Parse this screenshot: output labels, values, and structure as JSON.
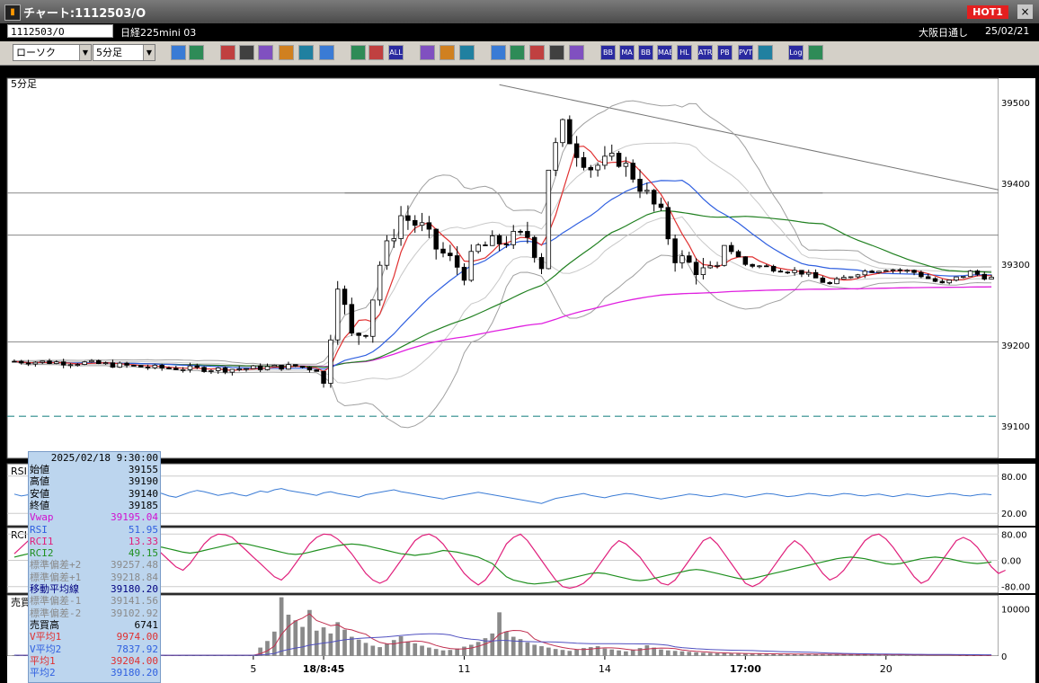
{
  "window": {
    "title": "チャート:1112503/O",
    "hot_label": "HOT1",
    "close_label": "×"
  },
  "symbol_bar": {
    "code": "1112503/O",
    "name": "日経225mini 03",
    "market": "大阪日通し",
    "date": "25/02/21"
  },
  "toolbar": {
    "chart_style": "ローソク",
    "interval": "5分足",
    "icons": [
      "zoom-icon",
      "layout-icon",
      "pencil-icon",
      "draw-icon",
      "cursor-icon",
      "undo-icon",
      "list-icon",
      "trash-icon",
      "candle-toggle-icon",
      "compress-icon",
      "all-icon",
      "settings-icon",
      "edit-icon",
      "color-icon",
      "import-icon",
      "search-chart-icon",
      "export-icon",
      "cross-icon",
      "info-icon",
      "bb-icon",
      "ma-icon",
      "bb2-icon",
      "mae-icon",
      "hl-icon",
      "atr-icon",
      "pb-icon",
      "pvt-icon",
      "box-icon",
      "log-icon",
      "exit-icon"
    ],
    "text_icons": {
      "all": "ALL",
      "bb": "BB",
      "ma": "MA",
      "mae": "MAE",
      "hl": "HL",
      "atr": "ATR",
      "pb": "PB",
      "pvt": "PVT",
      "log": "Log"
    }
  },
  "colors": {
    "up": "#ffffff",
    "down": "#000000",
    "ma_short": "#e03030",
    "ma_mid": "#3060e0",
    "ma_long": "#208020",
    "vwap": "#e020e0",
    "band": "#a0a0a0",
    "rsi": "#3a7bd5",
    "rci1": "#e0207c",
    "rci2": "#209020"
  },
  "infobox": {
    "datetime": "2025/02/18 9:30:00",
    "rows": [
      {
        "k": "始値",
        "v": "39155",
        "c": "#000"
      },
      {
        "k": "高値",
        "v": "39190",
        "c": "#000"
      },
      {
        "k": "安値",
        "v": "39140",
        "c": "#000"
      },
      {
        "k": "終値",
        "v": "39185",
        "c": "#000"
      },
      {
        "k": "Vwap",
        "v": "39195.04",
        "c": "#d010d0"
      },
      {
        "k": "RSI",
        "v": "51.95",
        "c": "#3060e0"
      },
      {
        "k": "RCI1",
        "v": "13.33",
        "c": "#e0207c"
      },
      {
        "k": "RCI2",
        "v": "49.15",
        "c": "#209020"
      },
      {
        "k": "標準偏差+2",
        "v": "39257.48",
        "c": "#8a8a8a"
      },
      {
        "k": "標準偏差+1",
        "v": "39218.84",
        "c": "#8a8a8a"
      },
      {
        "k": "移動平均線",
        "v": "39180.20",
        "c": "#000080"
      },
      {
        "k": "標準偏差-1",
        "v": "39141.56",
        "c": "#8a8a8a"
      },
      {
        "k": "標準偏差-2",
        "v": "39102.92",
        "c": "#8a8a8a"
      },
      {
        "k": "売買高",
        "v": "6741",
        "c": "#000"
      },
      {
        "k": "V平均1",
        "v": "9974.00",
        "c": "#e03030"
      },
      {
        "k": "V平均2",
        "v": "7837.92",
        "c": "#3060e0"
      },
      {
        "k": "平均1",
        "v": "39204.00",
        "c": "#e03030"
      },
      {
        "k": "平均2",
        "v": "39180.20",
        "c": "#3060e0"
      }
    ]
  },
  "chart_data": [
    {
      "type": "candlestick",
      "panel": "price",
      "interval_label": "5分足",
      "y_ticks": [
        39500,
        39400,
        39300,
        39200,
        39100
      ],
      "ylim": [
        39060,
        39530
      ],
      "x_ticks": [
        "5",
        "18/8:45",
        "11",
        "14",
        "17:00",
        "20"
      ],
      "x_tick_bar_index": [
        34,
        44,
        64,
        84,
        104,
        124
      ],
      "bar_count": 140,
      "horizontal_lines": [
        39388,
        39336,
        39204
      ],
      "dashed_line": 39112,
      "trendline": {
        "from": [
          69,
          39522
        ],
        "to": [
          140,
          39392
        ]
      },
      "trend": [
        [
          0,
          39180
        ],
        [
          10,
          39178
        ],
        [
          20,
          39172
        ],
        [
          30,
          39170
        ],
        [
          40,
          39174
        ],
        [
          43,
          39170
        ],
        [
          44,
          39150
        ],
        [
          46,
          39280
        ],
        [
          48,
          39210
        ],
        [
          50,
          39220
        ],
        [
          52,
          39300
        ],
        [
          55,
          39360
        ],
        [
          58,
          39345
        ],
        [
          60,
          39320
        ],
        [
          64,
          39290
        ],
        [
          66,
          39320
        ],
        [
          70,
          39330
        ],
        [
          73,
          39335
        ],
        [
          75,
          39300
        ],
        [
          76,
          39420
        ],
        [
          78,
          39470
        ],
        [
          80,
          39440
        ],
        [
          82,
          39420
        ],
        [
          86,
          39430
        ],
        [
          88,
          39410
        ],
        [
          92,
          39360
        ],
        [
          94,
          39310
        ],
        [
          98,
          39290
        ],
        [
          100,
          39290
        ],
        [
          101,
          39325
        ],
        [
          104,
          39300
        ],
        [
          108,
          39295
        ],
        [
          112,
          39290
        ],
        [
          116,
          39275
        ],
        [
          120,
          39290
        ],
        [
          124,
          39295
        ],
        [
          128,
          39290
        ],
        [
          132,
          39275
        ],
        [
          136,
          39290
        ],
        [
          140,
          39280
        ]
      ]
    },
    {
      "type": "line",
      "panel": "RSI",
      "name": "RSI",
      "y_ticks": [
        80,
        20
      ],
      "ylim": [
        0,
        100
      ],
      "values": [
        51,
        48,
        50,
        46,
        52,
        55,
        49,
        47,
        50,
        53,
        51,
        48,
        46,
        50,
        52,
        49,
        47,
        45,
        50,
        53,
        55,
        52,
        48,
        46,
        50,
        54,
        57,
        55,
        52,
        49,
        51,
        53,
        50,
        48,
        52,
        56,
        54,
        58,
        60,
        57,
        55,
        53,
        51,
        49,
        53,
        55,
        52,
        50,
        48,
        46,
        50,
        52,
        54,
        56,
        58,
        55,
        53,
        51,
        49,
        47,
        45,
        43,
        46,
        48,
        50,
        52,
        54,
        52,
        50,
        48,
        46,
        44,
        42,
        40,
        38,
        36,
        40,
        44,
        46,
        48,
        50,
        52,
        49,
        47,
        45,
        48,
        50,
        52,
        51,
        49,
        47,
        45,
        43,
        45,
        47,
        49,
        51,
        50,
        48,
        47,
        49,
        51,
        50,
        48,
        46,
        48,
        50,
        52,
        51,
        49,
        47,
        48,
        50,
        52,
        51,
        49,
        48,
        50,
        52,
        51,
        49,
        48,
        50,
        51,
        49,
        47,
        49,
        51,
        50,
        48,
        47,
        49,
        50,
        52,
        51,
        49,
        48,
        50,
        51,
        50
      ]
    },
    {
      "type": "line",
      "panel": "RCI",
      "y_ticks": [
        80,
        0,
        -80
      ],
      "ylim": [
        -100,
        100
      ],
      "series": [
        {
          "name": "RCI1",
          "values": [
            20,
            40,
            60,
            75,
            80,
            70,
            50,
            30,
            10,
            -10,
            -30,
            -40,
            -20,
            10,
            40,
            60,
            70,
            75,
            70,
            60,
            40,
            20,
            0,
            -20,
            -30,
            -10,
            20,
            50,
            70,
            80,
            78,
            70,
            50,
            30,
            10,
            -10,
            -30,
            -50,
            -60,
            -40,
            -10,
            20,
            50,
            70,
            80,
            78,
            65,
            45,
            20,
            -10,
            -40,
            -60,
            -70,
            -60,
            -30,
            0,
            30,
            60,
            75,
            80,
            70,
            50,
            20,
            -10,
            -40,
            -60,
            -75,
            -60,
            -30,
            10,
            50,
            70,
            80,
            60,
            30,
            0,
            -30,
            -60,
            -80,
            -85,
            -80,
            -70,
            -50,
            -20,
            10,
            40,
            60,
            50,
            30,
            10,
            -20,
            -50,
            -70,
            -75,
            -60,
            -30,
            0,
            30,
            60,
            70,
            50,
            20,
            -10,
            -40,
            -70,
            -80,
            -70,
            -50,
            -20,
            10,
            40,
            60,
            45,
            20,
            -10,
            -40,
            -60,
            -50,
            -30,
            0,
            30,
            60,
            75,
            80,
            65,
            40,
            10,
            -20,
            -50,
            -70,
            -60,
            -30,
            0,
            30,
            60,
            70,
            60,
            40,
            10,
            -20,
            -40,
            -30
          ]
        },
        {
          "name": "RCI2",
          "values": [
            10,
            15,
            20,
            25,
            28,
            30,
            30,
            28,
            25,
            20,
            15,
            10,
            8,
            10,
            15,
            20,
            25,
            30,
            35,
            40,
            42,
            40,
            35,
            30,
            25,
            22,
            25,
            30,
            35,
            40,
            45,
            50,
            52,
            50,
            45,
            40,
            35,
            30,
            25,
            20,
            18,
            20,
            25,
            30,
            35,
            40,
            45,
            48,
            50,
            48,
            45,
            40,
            35,
            30,
            25,
            20,
            18,
            15,
            18,
            20,
            25,
            30,
            28,
            25,
            20,
            15,
            10,
            0,
            -10,
            -30,
            -50,
            -60,
            -65,
            -70,
            -72,
            -70,
            -68,
            -65,
            -60,
            -55,
            -50,
            -45,
            -40,
            -38,
            -40,
            -45,
            -50,
            -55,
            -60,
            -62,
            -60,
            -55,
            -50,
            -45,
            -40,
            -35,
            -30,
            -28,
            -30,
            -35,
            -40,
            -45,
            -50,
            -55,
            -58,
            -55,
            -50,
            -45,
            -40,
            -35,
            -30,
            -25,
            -20,
            -15,
            -10,
            -5,
            0,
            5,
            8,
            10,
            8,
            5,
            0,
            -5,
            -10,
            -12,
            -10,
            -5,
            0,
            5,
            8,
            10,
            8,
            5,
            0,
            -5,
            -8,
            -10,
            -8,
            -5
          ]
        }
      ]
    },
    {
      "type": "bar",
      "panel": "volume",
      "name": "売買高",
      "y_ticks": [
        10000,
        0
      ],
      "ylim": [
        0,
        13000
      ],
      "values": [
        200,
        150,
        180,
        220,
        160,
        140,
        170,
        210,
        190,
        130,
        160,
        180,
        150,
        200,
        170,
        140,
        160,
        190,
        180,
        150,
        170,
        160,
        140,
        180,
        200,
        170,
        150,
        160,
        180,
        190,
        170,
        150,
        160,
        180,
        200,
        1800,
        3200,
        5200,
        12500,
        8800,
        7600,
        6200,
        9800,
        5400,
        6100,
        4800,
        7200,
        5600,
        4100,
        3500,
        2800,
        2200,
        1900,
        2600,
        3400,
        4200,
        3100,
        2700,
        2200,
        1800,
        1500,
        1200,
        1300,
        1600,
        2000,
        2400,
        3000,
        3800,
        4800,
        9300,
        5200,
        4100,
        3600,
        2900,
        2400,
        2100,
        1800,
        1500,
        1300,
        1100,
        1400,
        1700,
        1900,
        2100,
        1600,
        1400,
        1200,
        1000,
        1300,
        1700,
        2300,
        1800,
        1400,
        1200,
        1100,
        1000,
        900,
        800,
        700,
        650,
        600,
        580,
        560,
        540,
        520,
        500,
        480,
        460,
        450,
        440,
        430,
        420,
        410,
        400,
        390,
        380,
        370,
        360,
        350,
        340,
        330,
        320,
        310,
        300,
        290,
        280,
        270,
        260,
        250,
        240,
        230,
        220,
        210,
        200,
        190,
        180,
        170,
        160,
        150,
        140
      ]
    }
  ]
}
